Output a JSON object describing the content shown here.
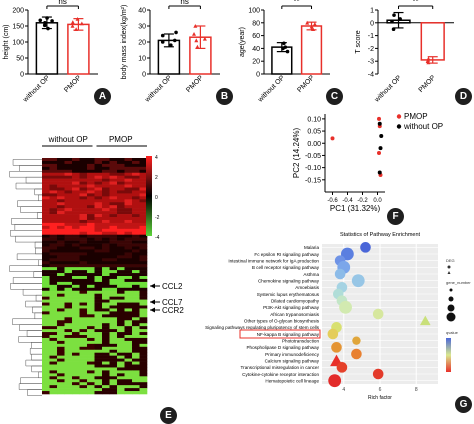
{
  "chart_data": [
    {
      "type": "bar",
      "panel": "A",
      "categories": [
        "without OP",
        "PMOP"
      ],
      "colors": [
        "#000000",
        "#e8302a"
      ],
      "ylabel": "height (cm)",
      "ylim": [
        0,
        200
      ],
      "yticks": [
        "0",
        "50",
        "100",
        "150",
        "200"
      ],
      "values": [
        160,
        155
      ],
      "errors": [
        18,
        18
      ],
      "points": [
        [
          152,
          168,
          175,
          142,
          160,
          166
        ],
        [
          150,
          162,
          172,
          140,
          158
        ]
      ],
      "significance": "ns"
    },
    {
      "type": "bar",
      "panel": "B",
      "categories": [
        "without OP",
        "PMOP"
      ],
      "colors": [
        "#000000",
        "#e8302a"
      ],
      "ylabel": "body mass index(kg/m²)",
      "ylim": [
        0,
        40
      ],
      "yticks": [
        "0",
        "10",
        "20",
        "30",
        "40"
      ],
      "values": [
        21,
        23
      ],
      "errors": [
        4,
        7
      ],
      "points": [
        [
          18,
          21,
          24,
          20,
          26
        ],
        [
          17,
          22,
          30,
          25,
          21
        ]
      ],
      "significance": "ns"
    },
    {
      "type": "bar",
      "panel": "C",
      "categories": [
        "without OP",
        "PMOP"
      ],
      "colors": [
        "#000000",
        "#e8302a"
      ],
      "ylabel": "age(year)",
      "ylim": [
        0,
        100
      ],
      "yticks": [
        "0",
        "20",
        "40",
        "60",
        "80",
        "100"
      ],
      "values": [
        42,
        75
      ],
      "errors": [
        7,
        6
      ],
      "points": [
        [
          35,
          42,
          48,
          40
        ],
        [
          70,
          78,
          74,
          80
        ]
      ],
      "significance": "**"
    },
    {
      "type": "bar",
      "panel": "D",
      "categories": [
        "without OP",
        "PMOP"
      ],
      "colors": [
        "#000000",
        "#e8302a"
      ],
      "ylabel": "T score",
      "ylim": [
        -4,
        1
      ],
      "yticks": [
        "1",
        "0",
        "-1",
        "-2",
        "-3",
        "-4"
      ],
      "values": [
        0.2,
        -2.9
      ],
      "errors": [
        0.6,
        0.25
      ],
      "points": [
        [
          -0.5,
          0.3,
          0.6,
          0.1
        ],
        [
          -2.8,
          -3.0,
          -2.9,
          -3.1
        ]
      ],
      "significance": "**"
    },
    {
      "type": "heatmap",
      "panel": "E",
      "group_labels": [
        "without OP",
        "PMOP"
      ],
      "colorbar_ticks": [
        "4",
        "2",
        "0",
        "-2",
        "-4"
      ],
      "gene_labels": [
        "CCL2",
        "CCL7",
        "CCR2"
      ]
    },
    {
      "type": "scatter",
      "panel": "F",
      "xlabel": "PC1 (31.32%)",
      "ylabel": "PC2 (14.24%)",
      "xlim": [
        -0.7,
        0.1
      ],
      "ylim": [
        -0.2,
        0.12
      ],
      "xticks": [
        "-0.6",
        "-0.4",
        "-0.2",
        "0.0"
      ],
      "yticks": [
        "0.10",
        "0.05",
        "0.00",
        "-0.05",
        "-0.10",
        "-0.15"
      ],
      "series": [
        {
          "name": "PMOP",
          "color": "#e8302a",
          "x": [
            -0.6,
            0.02,
            0.03,
            0.02,
            0.04
          ],
          "y": [
            0.02,
            0.1,
            0.07,
            -0.04,
            -0.13
          ]
        },
        {
          "name": "without OP",
          "color": "#000000",
          "x": [
            0.03,
            0.05,
            0.04,
            0.03
          ],
          "y": [
            0.08,
            0.03,
            -0.02,
            -0.12
          ]
        }
      ]
    },
    {
      "type": "scatter",
      "panel": "G",
      "title": "Statistics of Pathway Enrichment",
      "xlabel": "Rich factor",
      "x_axis_ticks": [
        "4",
        "6",
        "8"
      ],
      "categories": [
        "Malaria",
        "Fc epsilon RI signaling pathway",
        "Intestinal immune network for IgA production",
        "B cell receptor signaling pathway",
        "Asthma",
        "Chemokine signaling pathway",
        "Amoebiasis",
        "Systemic lupus erythematosus",
        "Dilated cardiomyopathy",
        "PI3K-Akt signaling pathway",
        "African trypanosomiasis",
        "Other types of O-glycan biosynthesis",
        "Signaling pathways regulating pluripotency of stem cells",
        "NF-kappa B signaling pathway",
        "Phototransduction",
        "Phospholipase D signaling pathway",
        "Primary immunodeficiency",
        "Calcium signaling pathway",
        "Transcriptional misregulation in cancer",
        "Cytokine-cytokine receptor interaction",
        "Hematopoietic cell lineage"
      ],
      "highlighted": "NF-kappa B signaling pathway",
      "points": [
        {
          "x": 5.2,
          "y": 0,
          "size": 3,
          "color": "#4a66d8",
          "shape": "circle"
        },
        {
          "x": 4.2,
          "y": 1,
          "size": 4,
          "color": "#5b7fe0",
          "shape": "circle"
        },
        {
          "x": 3.8,
          "y": 2,
          "size": 3,
          "color": "#6f93e6",
          "shape": "circle"
        },
        {
          "x": 4.0,
          "y": 3,
          "size": 4,
          "color": "#7ba6ea",
          "shape": "circle"
        },
        {
          "x": 3.8,
          "y": 4,
          "size": 3,
          "color": "#8cbbe8",
          "shape": "circle"
        },
        {
          "x": 4.8,
          "y": 5,
          "size": 4,
          "color": "#97c6e6",
          "shape": "circle"
        },
        {
          "x": 3.9,
          "y": 6,
          "size": 3,
          "color": "#a5d3e3",
          "shape": "circle"
        },
        {
          "x": 3.7,
          "y": 7,
          "size": 3,
          "color": "#b0ddd8",
          "shape": "circle"
        },
        {
          "x": 3.9,
          "y": 8,
          "size": 3,
          "color": "#c3e6c7",
          "shape": "circle"
        },
        {
          "x": 4.1,
          "y": 9,
          "size": 4,
          "color": "#d2eab0",
          "shape": "circle"
        },
        {
          "x": 5.9,
          "y": 10,
          "size": 3,
          "color": "#d6e79e",
          "shape": "circle"
        },
        {
          "x": 8.5,
          "y": 11,
          "size": 3,
          "color": "#c9e07a",
          "shape": "triangle"
        },
        {
          "x": 3.6,
          "y": 12,
          "size": 3,
          "color": "#d8e070",
          "shape": "circle"
        },
        {
          "x": 3.4,
          "y": 13,
          "size": 3,
          "color": "#e4cd5a",
          "shape": "circle"
        },
        {
          "x": 4.7,
          "y": 14,
          "size": 2,
          "color": "#e0a63b",
          "shape": "circle"
        },
        {
          "x": 3.6,
          "y": 15,
          "size": 3,
          "color": "#e49433",
          "shape": "circle"
        },
        {
          "x": 4.7,
          "y": 16,
          "size": 3,
          "color": "#e88030",
          "shape": "circle"
        },
        {
          "x": 3.6,
          "y": 17,
          "size": 4,
          "color": "#e8302a",
          "shape": "triangle"
        },
        {
          "x": 3.9,
          "y": 18,
          "size": 3,
          "color": "#e5412a",
          "shape": "circle"
        },
        {
          "x": 5.9,
          "y": 19,
          "size": 3,
          "color": "#e33a2a",
          "shape": "circle"
        },
        {
          "x": 3.5,
          "y": 20,
          "size": 4,
          "color": "#e32b2a",
          "shape": "circle"
        }
      ],
      "legend": {
        "shape_title": "DEG",
        "gene_number_title": "gene_number",
        "qvalue_title": "qvalue"
      }
    }
  ],
  "panel_badges": [
    "A",
    "B",
    "C",
    "D",
    "E",
    "F",
    "G"
  ]
}
